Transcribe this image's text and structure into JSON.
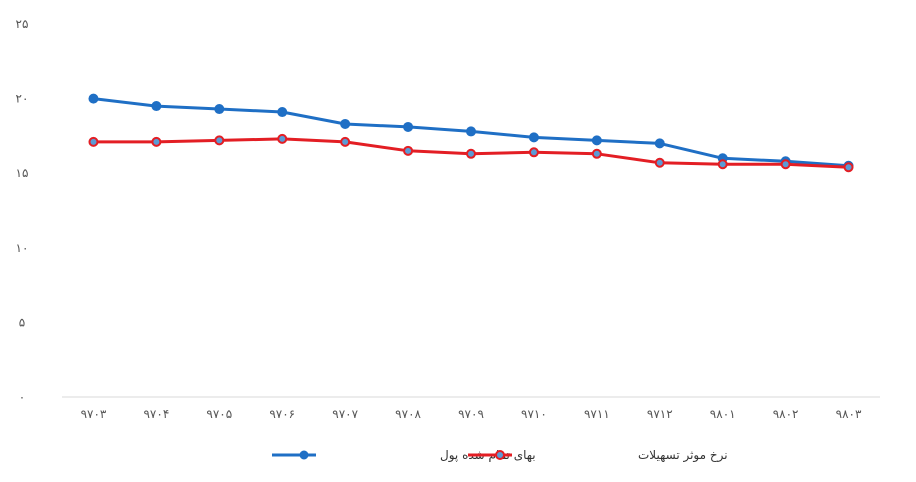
{
  "chart_data": {
    "type": "line",
    "categories": [
      "۹۷۰۳",
      "۹۷۰۴",
      "۹۷۰۵",
      "۹۷۰۶",
      "۹۷۰۷",
      "۹۷۰۸",
      "۹۷۰۹",
      "۹۷۱۰",
      "۹۷۱۱",
      "۹۷۱۲",
      "۹۸۰۱",
      "۹۸۰۲",
      "۹۸۰۳"
    ],
    "ylim": [
      0,
      25
    ],
    "yticks": [
      0,
      5,
      10,
      15,
      20,
      25
    ],
    "ytick_labels": [
      "۰",
      "۵",
      "۱۰",
      "۱۵",
      "۲۰",
      "۲۵"
    ],
    "grid": false,
    "legend_position": "bottom",
    "series": [
      {
        "name": "بهای تمام شده پول",
        "color": "#1f6fc5",
        "values": [
          20.0,
          19.5,
          19.3,
          19.1,
          18.3,
          18.1,
          17.8,
          17.4,
          17.2,
          17.0,
          16.0,
          15.8,
          15.5
        ]
      },
      {
        "name": "نرخ موثر تسهیلات",
        "color": "#e31e24",
        "values": [
          17.1,
          17.1,
          17.2,
          17.3,
          17.1,
          16.5,
          16.3,
          16.4,
          16.3,
          15.7,
          15.6,
          15.6,
          15.4
        ]
      }
    ]
  }
}
